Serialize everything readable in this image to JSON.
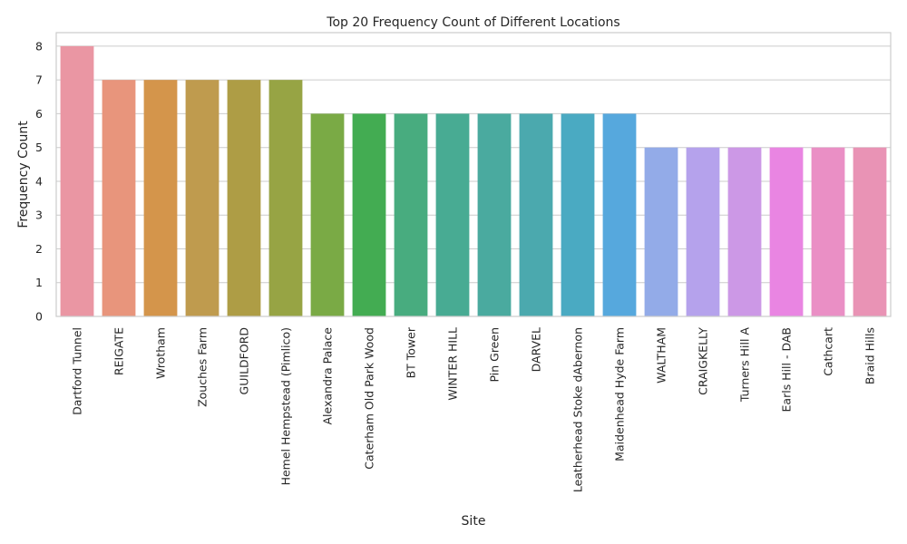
{
  "chart_data": {
    "type": "bar",
    "title": "Top 20 Frequency Count of Different Locations",
    "xlabel": "Site",
    "ylabel": "Frequency Count",
    "ylim": [
      0,
      8.4
    ],
    "yticks": [
      0,
      1,
      2,
      3,
      4,
      5,
      6,
      7,
      8
    ],
    "grid": true,
    "categories": [
      "Dartford Tunnel",
      "REIGATE",
      "Wrotham",
      "Zouches Farm",
      "GUILDFORD",
      "Hemel Hempstead (Pimlico)",
      "Alexandra Palace",
      "Caterham Old Park Wood",
      "BT Tower",
      "WINTER HILL",
      "Pin Green",
      "DARVEL",
      "Leatherhead Stoke dAbernon",
      "Maidenhead Hyde Farm",
      "WALTHAM",
      "CRAIGKELLY",
      "Turners Hill A",
      "Earls Hill - DAB",
      "Cathcart",
      "Braid Hills"
    ],
    "values": [
      8,
      7,
      7,
      7,
      7,
      7,
      6,
      6,
      6,
      6,
      6,
      6,
      6,
      6,
      5,
      5,
      5,
      5,
      5,
      5
    ],
    "colors": [
      "#ea96a3",
      "#e8957c",
      "#d4954b",
      "#bf9b4e",
      "#ae9d45",
      "#97a444",
      "#7aaa45",
      "#43ac52",
      "#48ac7f",
      "#48ab93",
      "#4aaa9f",
      "#4ba9ae",
      "#4aaac2",
      "#56a8dd",
      "#93abe8",
      "#b5a2ec",
      "#cc98e6",
      "#e985e2",
      "#ea8fc5",
      "#e993b5"
    ]
  }
}
